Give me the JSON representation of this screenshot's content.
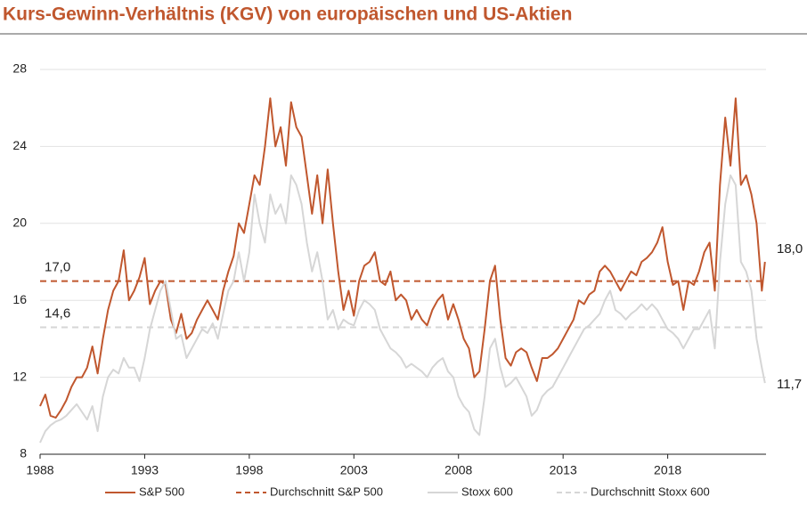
{
  "chart_data": {
    "type": "line",
    "title": "Kurs-Gewinn-Verhältnis (KGV) von europäischen und US-Aktien",
    "x": [
      1988,
      1988.25,
      1988.5,
      1988.75,
      1989,
      1989.25,
      1989.5,
      1989.75,
      1990,
      1990.25,
      1990.5,
      1990.75,
      1991,
      1991.25,
      1991.5,
      1991.75,
      1992,
      1992.25,
      1992.5,
      1992.75,
      1993,
      1993.25,
      1993.5,
      1993.75,
      1994,
      1994.25,
      1994.5,
      1994.75,
      1995,
      1995.25,
      1995.5,
      1995.75,
      1996,
      1996.25,
      1996.5,
      1996.75,
      1997,
      1997.25,
      1997.5,
      1997.75,
      1998,
      1998.25,
      1998.5,
      1998.75,
      1999,
      1999.25,
      1999.5,
      1999.75,
      2000,
      2000.25,
      2000.5,
      2000.75,
      2001,
      2001.25,
      2001.5,
      2001.75,
      2002,
      2002.25,
      2002.5,
      2002.75,
      2003,
      2003.25,
      2003.5,
      2003.75,
      2004,
      2004.25,
      2004.5,
      2004.75,
      2005,
      2005.25,
      2005.5,
      2005.75,
      2006,
      2006.25,
      2006.5,
      2006.75,
      2007,
      2007.25,
      2007.5,
      2007.75,
      2008,
      2008.25,
      2008.5,
      2008.75,
      2009,
      2009.25,
      2009.5,
      2009.75,
      2010,
      2010.25,
      2010.5,
      2010.75,
      2011,
      2011.25,
      2011.5,
      2011.75,
      2012,
      2012.25,
      2012.5,
      2012.75,
      2013,
      2013.25,
      2013.5,
      2013.75,
      2014,
      2014.25,
      2014.5,
      2014.75,
      2015,
      2015.25,
      2015.5,
      2015.75,
      2016,
      2016.25,
      2016.5,
      2016.75,
      2017,
      2017.25,
      2017.5,
      2017.75,
      2018,
      2018.25,
      2018.5,
      2018.75,
      2019,
      2019.25,
      2019.5,
      2019.75,
      2020,
      2020.25,
      2020.5,
      2020.75,
      2021,
      2021.25,
      2021.5,
      2021.75,
      2022,
      2022.25,
      2022.5,
      2022.65
    ],
    "series": [
      {
        "name": "S&P 500",
        "color": "#c0572e",
        "end_label": "18,0",
        "values": [
          10.5,
          11.1,
          10.0,
          9.9,
          10.3,
          10.8,
          11.5,
          12.0,
          12.0,
          12.5,
          13.6,
          12.2,
          14.0,
          15.5,
          16.5,
          17.0,
          18.6,
          16.0,
          16.5,
          17.2,
          18.2,
          15.8,
          16.5,
          17.0,
          16.8,
          15.0,
          14.3,
          15.3,
          14.0,
          14.3,
          15.0,
          15.5,
          16.0,
          15.5,
          15.0,
          16.5,
          17.5,
          18.3,
          20.0,
          19.5,
          21.0,
          22.5,
          22.0,
          24.0,
          26.5,
          24.0,
          25.0,
          23.0,
          26.3,
          25.0,
          24.5,
          22.5,
          20.5,
          22.5,
          20.0,
          22.8,
          20.0,
          17.5,
          15.5,
          16.5,
          15.2,
          17.0,
          17.8,
          18.0,
          18.5,
          17.0,
          16.8,
          17.5,
          16.0,
          16.3,
          16.0,
          15.0,
          15.5,
          15.0,
          14.7,
          15.5,
          16.0,
          16.3,
          15.0,
          15.8,
          15.0,
          14.0,
          13.5,
          12.0,
          12.3,
          14.5,
          17.0,
          17.8,
          15.0,
          13.0,
          12.6,
          13.3,
          13.5,
          13.3,
          12.5,
          11.8,
          13.0,
          13.0,
          13.2,
          13.5,
          14.0,
          14.5,
          15.0,
          16.0,
          15.8,
          16.3,
          16.5,
          17.5,
          17.8,
          17.5,
          17.0,
          16.5,
          17.0,
          17.5,
          17.3,
          18.0,
          18.2,
          18.5,
          19.0,
          19.8,
          18.0,
          16.8,
          17.0,
          15.5,
          17.0,
          16.8,
          17.5,
          18.5,
          19.0,
          16.5,
          22.0,
          25.5,
          23.0,
          26.5,
          22.0,
          22.5,
          21.5,
          20.0,
          16.5,
          18.0
        ]
      },
      {
        "name": "Stoxx 600",
        "color": "#d6d6d6",
        "end_label": "11,7",
        "values": [
          8.6,
          9.2,
          9.5,
          9.7,
          9.8,
          10.0,
          10.3,
          10.6,
          10.2,
          9.8,
          10.5,
          9.2,
          11.0,
          12.0,
          12.4,
          12.2,
          13.0,
          12.5,
          12.5,
          11.8,
          13.0,
          14.5,
          15.5,
          16.5,
          17.0,
          15.5,
          14.0,
          14.2,
          13.0,
          13.5,
          14.0,
          14.5,
          14.3,
          14.8,
          14.0,
          15.3,
          16.5,
          17.0,
          18.5,
          17.0,
          18.5,
          21.5,
          20.0,
          19.0,
          21.5,
          20.5,
          21.0,
          20.0,
          22.5,
          22.0,
          21.0,
          19.0,
          17.5,
          18.5,
          17.0,
          15.0,
          15.5,
          14.5,
          15.0,
          14.8,
          14.7,
          15.5,
          16.0,
          15.8,
          15.5,
          14.5,
          14.0,
          13.5,
          13.3,
          13.0,
          12.5,
          12.7,
          12.5,
          12.3,
          12.0,
          12.5,
          12.8,
          13.0,
          12.3,
          12.0,
          11.0,
          10.5,
          10.2,
          9.3,
          9.0,
          11.0,
          13.5,
          14.0,
          12.5,
          11.5,
          11.7,
          12.0,
          11.5,
          11.0,
          10.0,
          10.3,
          11.0,
          11.3,
          11.5,
          12.0,
          12.5,
          13.0,
          13.5,
          14.0,
          14.5,
          14.7,
          15.0,
          15.3,
          16.0,
          16.5,
          15.5,
          15.3,
          15.0,
          15.3,
          15.5,
          15.8,
          15.5,
          15.8,
          15.5,
          15.0,
          14.5,
          14.3,
          14.0,
          13.5,
          14.0,
          14.5,
          14.5,
          15.0,
          15.5,
          13.5,
          18.0,
          21.0,
          22.5,
          22.0,
          18.0,
          17.5,
          16.5,
          14.0,
          12.5,
          11.7
        ]
      }
    ],
    "averages": [
      {
        "name": "Durchschnitt S&P 500",
        "color": "#c0572e",
        "value": 17.0,
        "value_label": "17,0"
      },
      {
        "name": "Durchschnitt Stoxx 600",
        "color": "#d6d6d6",
        "value": 14.6,
        "value_label": "14,6"
      }
    ],
    "xlim": [
      1988,
      2022.7
    ],
    "xticks": [
      1988,
      1993,
      1998,
      2003,
      2008,
      2013,
      2018
    ],
    "ylim": [
      8,
      28
    ],
    "yticks": [
      8,
      12,
      16,
      20,
      24,
      28
    ],
    "grid": true
  }
}
